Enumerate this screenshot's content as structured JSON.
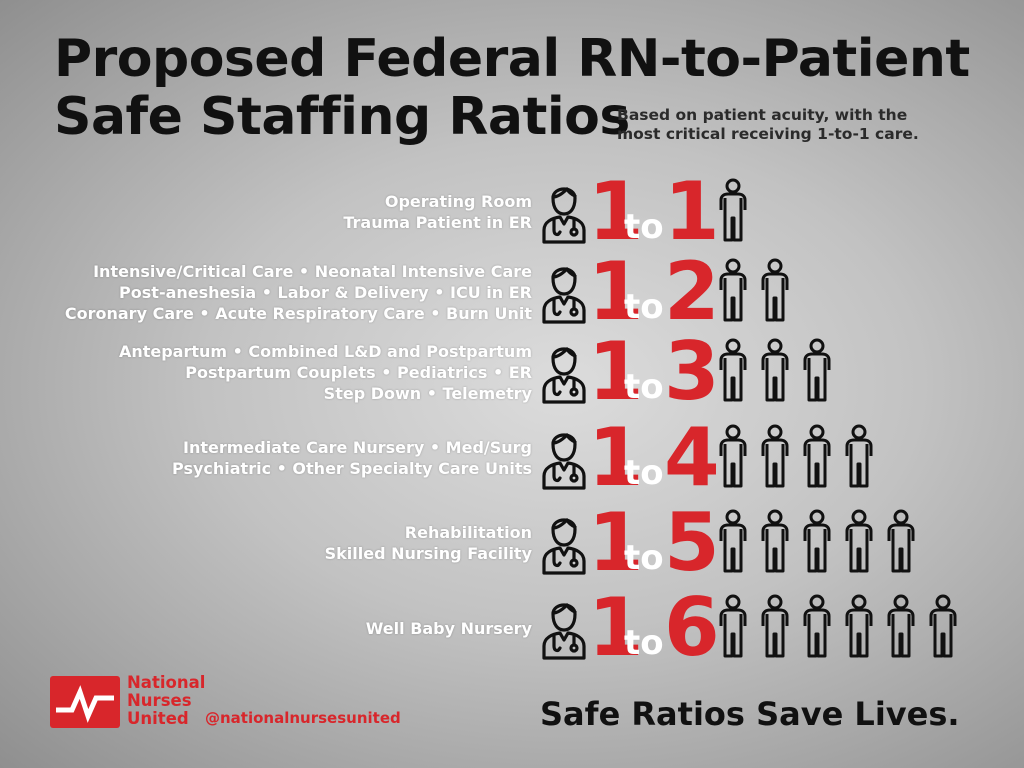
{
  "title_line1": "Proposed Federal RN-to-Patient",
  "title_line2": "Safe Staffing Ratios",
  "subtitle_line1": "Based on patient acuity, with the",
  "subtitle_line2": "most critical receiving 1-to-1 care.",
  "ratios": [
    {
      "nurse": "1",
      "to": "to",
      "patients": "1",
      "units": [
        "Operating Room",
        "Trauma Patient in ER"
      ],
      "nurse_icon": "nurse-icon",
      "patient_icon": "patient-icon"
    },
    {
      "nurse": "1",
      "to": "to",
      "patients": "2",
      "units": [
        "Intensive/Critical Care • Neonatal Intensive Care",
        "Post-aneshesia • Labor & Delivery • ICU in ER",
        "Coronary Care • Acute Respiratory Care • Burn Unit"
      ],
      "nurse_icon": "nurse-icon",
      "patient_icon": "patient-icon"
    },
    {
      "nurse": "1",
      "to": "to",
      "patients": "3",
      "units": [
        "Antepartum  • Combined L&D and Postpartum",
        "Postpartum Couplets • Pediatrics • ER",
        "Step Down • Telemetry"
      ],
      "nurse_icon": "nurse-icon",
      "patient_icon": "patient-icon"
    },
    {
      "nurse": "1",
      "to": "to",
      "patients": "4",
      "units": [
        "Intermediate Care Nursery • Med/Surg",
        "Psychiatric • Other Specialty Care Units"
      ],
      "nurse_icon": "nurse-icon",
      "patient_icon": "patient-icon"
    },
    {
      "nurse": "1",
      "to": "to",
      "patients": "5",
      "units": [
        "Rehabilitation",
        "Skilled Nursing Facility"
      ],
      "nurse_icon": "nurse-icon",
      "patient_icon": "patient-icon"
    },
    {
      "nurse": "1",
      "to": "to",
      "patients": "6",
      "units": [
        "Well Baby Nursery"
      ],
      "nurse_icon": "nurse-icon",
      "patient_icon": "patient-icon"
    }
  ],
  "org": {
    "line1": "National",
    "line2": "Nurses",
    "line3": "United",
    "handle": "@nationalnursesunited",
    "logo_icon": "nnu-logo"
  },
  "slogan": "Safe Ratios Save Lives.",
  "colors": {
    "accent_red": "#d8262b",
    "text_dark": "#111111",
    "text_light": "#ffffff"
  }
}
